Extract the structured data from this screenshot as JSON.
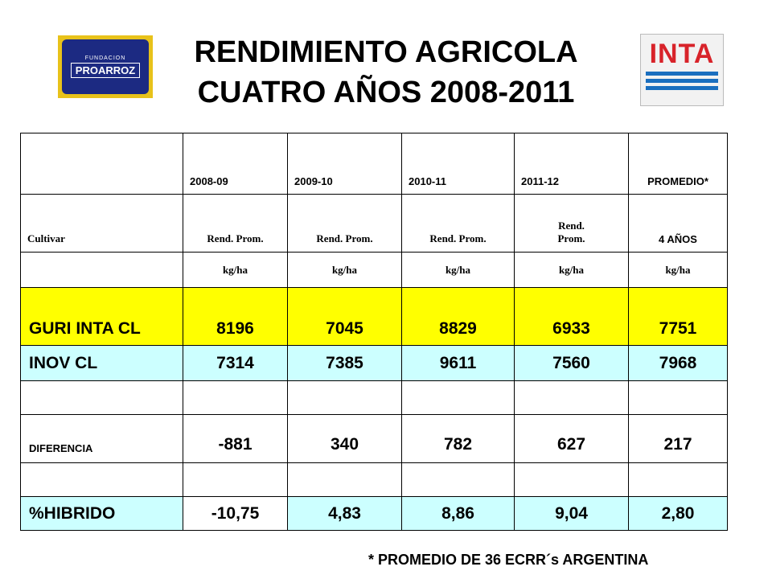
{
  "title_line1": "RENDIMIENTO AGRICOLA",
  "title_line2": "CUATRO AÑOS 2008-2011",
  "logo_left": {
    "small": "FUNDACION",
    "big": "PROARROZ"
  },
  "logo_right": {
    "text": "INTA",
    "color": "#d8232a",
    "stripe_color": "#1b6fbf"
  },
  "colors": {
    "yellow_row": "#ffff00",
    "cyan_row": "#ccffff"
  },
  "table": {
    "header_years": [
      "",
      "2008-09",
      "2009-10",
      "2010-11",
      "2011-12",
      "PROMEDIO*"
    ],
    "header_rend": [
      "Cultivar",
      "Rend. Prom.",
      "Rend. Prom.",
      "Rend. Prom.",
      "Rend. Prom.",
      "4 AÑOS"
    ],
    "header_units": [
      "",
      "kg/ha",
      "kg/ha",
      "kg/ha",
      "kg/ha",
      "kg/ha"
    ],
    "guri": [
      "GURI INTA CL",
      "8196",
      "7045",
      "8829",
      "6933",
      "7751"
    ],
    "inov": [
      "INOV CL",
      "7314",
      "7385",
      "9611",
      "7560",
      "7968"
    ],
    "diferencia": [
      "DIFERENCIA",
      "-881",
      "340",
      "782",
      "627",
      "217"
    ],
    "hibrido": [
      "%HIBRIDO",
      "-10,75",
      "4,83",
      "8,86",
      "9,04",
      "2,80"
    ]
  },
  "footnote": "* PROMEDIO DE 36 ECRR´s ARGENTINA"
}
